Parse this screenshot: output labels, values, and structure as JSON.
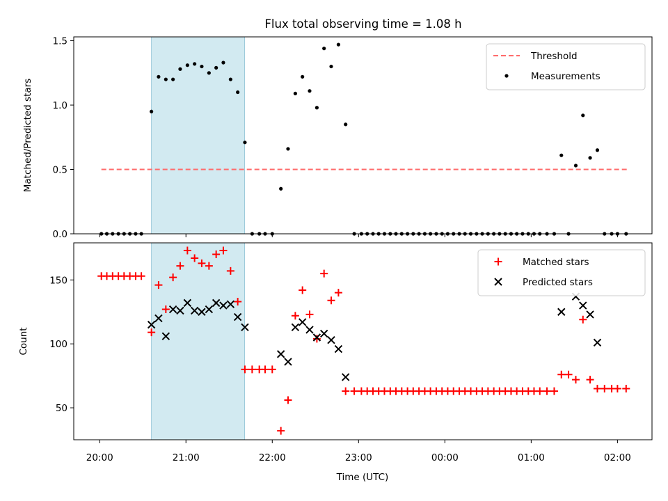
{
  "chart_data": {
    "title": "Flux total observing time = 1.08 h",
    "xlabel": "Time (UTC)",
    "x_unit": "hours after 20:00",
    "x_ticks": [
      {
        "v": 0,
        "label": "20:00"
      },
      {
        "v": 1,
        "label": "21:00"
      },
      {
        "v": 2,
        "label": "22:00"
      },
      {
        "v": 3,
        "label": "23:00"
      },
      {
        "v": 4,
        "label": "00:00"
      },
      {
        "v": 5,
        "label": "01:00"
      },
      {
        "v": 6,
        "label": "02:00"
      }
    ],
    "xlim": [
      -0.3,
      6.4
    ],
    "shaded_interval": [
      0.6,
      1.68
    ],
    "shade_color": "#add8e6",
    "panels": [
      {
        "type": "scatter",
        "ylabel": "Matched/Predicted stars",
        "ylim": [
          0,
          1.53
        ],
        "y_ticks": [
          {
            "v": 0,
            "label": "0.0"
          },
          {
            "v": 0.5,
            "label": "0.5"
          },
          {
            "v": 1.0,
            "label": "1.0"
          },
          {
            "v": 1.5,
            "label": "1.5"
          }
        ],
        "threshold": {
          "name": "Threshold",
          "y": 0.5,
          "x_range": [
            0.02,
            6.12
          ],
          "color": "#ff6b6b"
        },
        "series": [
          {
            "name": "Measurements",
            "color": "#000000",
            "x": [
              0.02,
              0.083,
              0.15,
              0.217,
              0.283,
              0.35,
              0.417,
              0.483,
              0.6,
              0.683,
              0.767,
              0.85,
              0.933,
              1.017,
              1.1,
              1.183,
              1.267,
              1.35,
              1.433,
              1.517,
              1.6,
              1.683,
              1.767,
              1.85,
              1.917,
              2.0,
              2.1,
              2.183,
              2.267,
              2.35,
              2.433,
              2.517,
              2.6,
              2.683,
              2.767,
              2.85,
              2.95,
              3.033,
              3.1,
              3.167,
              3.233,
              3.3,
              3.367,
              3.433,
              3.5,
              3.567,
              3.633,
              3.7,
              3.767,
              3.833,
              3.9,
              3.967,
              4.033,
              4.1,
              4.167,
              4.233,
              4.3,
              4.367,
              4.433,
              4.5,
              4.567,
              4.633,
              4.7,
              4.767,
              4.833,
              4.9,
              4.967,
              5.033,
              5.1,
              5.183,
              5.267,
              5.35,
              5.433,
              5.517,
              5.6,
              5.683,
              5.767,
              5.85,
              5.933,
              6.0,
              6.1
            ],
            "y": [
              0,
              0,
              0,
              0,
              0,
              0,
              0,
              0,
              0.95,
              1.22,
              1.2,
              1.2,
              1.28,
              1.31,
              1.32,
              1.3,
              1.25,
              1.29,
              1.33,
              1.2,
              1.1,
              0.71,
              0,
              0,
              0,
              0,
              0.35,
              0.66,
              1.09,
              1.22,
              1.11,
              0.98,
              1.44,
              1.3,
              1.47,
              0.85,
              0,
              0,
              0,
              0,
              0,
              0,
              0,
              0,
              0,
              0,
              0,
              0,
              0,
              0,
              0,
              0,
              0,
              0,
              0,
              0,
              0,
              0,
              0,
              0,
              0,
              0,
              0,
              0,
              0,
              0,
              0,
              0,
              0,
              0,
              0,
              0.61,
              0,
              0.53,
              0.92,
              0.59,
              0.65,
              0,
              0,
              0,
              0
            ]
          }
        ],
        "legend": {
          "position": "upper right",
          "entries": [
            "Threshold",
            "Measurements"
          ]
        }
      },
      {
        "type": "scatter",
        "ylabel": "Count",
        "ylim": [
          25,
          179
        ],
        "y_ticks": [
          {
            "v": 50,
            "label": "50"
          },
          {
            "v": 100,
            "label": "100"
          },
          {
            "v": 150,
            "label": "150"
          }
        ],
        "series": [
          {
            "name": "Matched stars",
            "marker": "plus",
            "color": "#ff0000",
            "x": [
              0.02,
              0.083,
              0.15,
              0.217,
              0.283,
              0.35,
              0.417,
              0.483,
              0.6,
              0.683,
              0.767,
              0.85,
              0.933,
              1.017,
              1.1,
              1.183,
              1.267,
              1.35,
              1.433,
              1.517,
              1.6,
              1.683,
              1.767,
              1.85,
              1.917,
              2.0,
              2.1,
              2.183,
              2.267,
              2.35,
              2.433,
              2.517,
              2.6,
              2.683,
              2.767,
              2.85,
              2.95,
              3.033,
              3.1,
              3.167,
              3.233,
              3.3,
              3.367,
              3.433,
              3.5,
              3.567,
              3.633,
              3.7,
              3.767,
              3.833,
              3.9,
              3.967,
              4.033,
              4.1,
              4.167,
              4.233,
              4.3,
              4.367,
              4.433,
              4.5,
              4.567,
              4.633,
              4.7,
              4.767,
              4.833,
              4.9,
              4.967,
              5.033,
              5.1,
              5.183,
              5.267,
              5.35,
              5.433,
              5.517,
              5.6,
              5.683,
              5.767,
              5.85,
              5.933,
              6.0,
              6.1
            ],
            "y": [
              153,
              153,
              153,
              153,
              153,
              153,
              153,
              153,
              109,
              146,
              127,
              152,
              161,
              173,
              167,
              163,
              161,
              170,
              173,
              157,
              133,
              80,
              80,
              80,
              80,
              80,
              32,
              56,
              122,
              142,
              123,
              104,
              155,
              134,
              140,
              63,
              63,
              63,
              63,
              63,
              63,
              63,
              63,
              63,
              63,
              63,
              63,
              63,
              63,
              63,
              63,
              63,
              63,
              63,
              63,
              63,
              63,
              63,
              63,
              63,
              63,
              63,
              63,
              63,
              63,
              63,
              63,
              63,
              63,
              63,
              63,
              76,
              76,
              72,
              119,
              72,
              65,
              65,
              65,
              65,
              65
            ]
          },
          {
            "name": "Predicted stars",
            "marker": "x",
            "color": "#000000",
            "x": [
              0.6,
              0.683,
              0.767,
              0.85,
              0.933,
              1.017,
              1.1,
              1.183,
              1.267,
              1.35,
              1.433,
              1.517,
              1.6,
              1.683,
              2.1,
              2.183,
              2.267,
              2.35,
              2.433,
              2.517,
              2.6,
              2.683,
              2.767,
              2.85,
              5.35,
              5.517,
              5.6,
              5.683,
              5.767
            ],
            "y": [
              115,
              120,
              106,
              127,
              126,
              132,
              126,
              125,
              127,
              132,
              130,
              131,
              121,
              113,
              92,
              86,
              113,
              117,
              111,
              105,
              108,
              103,
              96,
              74,
              125,
              137,
              130,
              123,
              101
            ]
          }
        ],
        "legend": {
          "position": "upper right",
          "entries": [
            "Matched stars",
            "Predicted stars"
          ]
        }
      }
    ]
  }
}
